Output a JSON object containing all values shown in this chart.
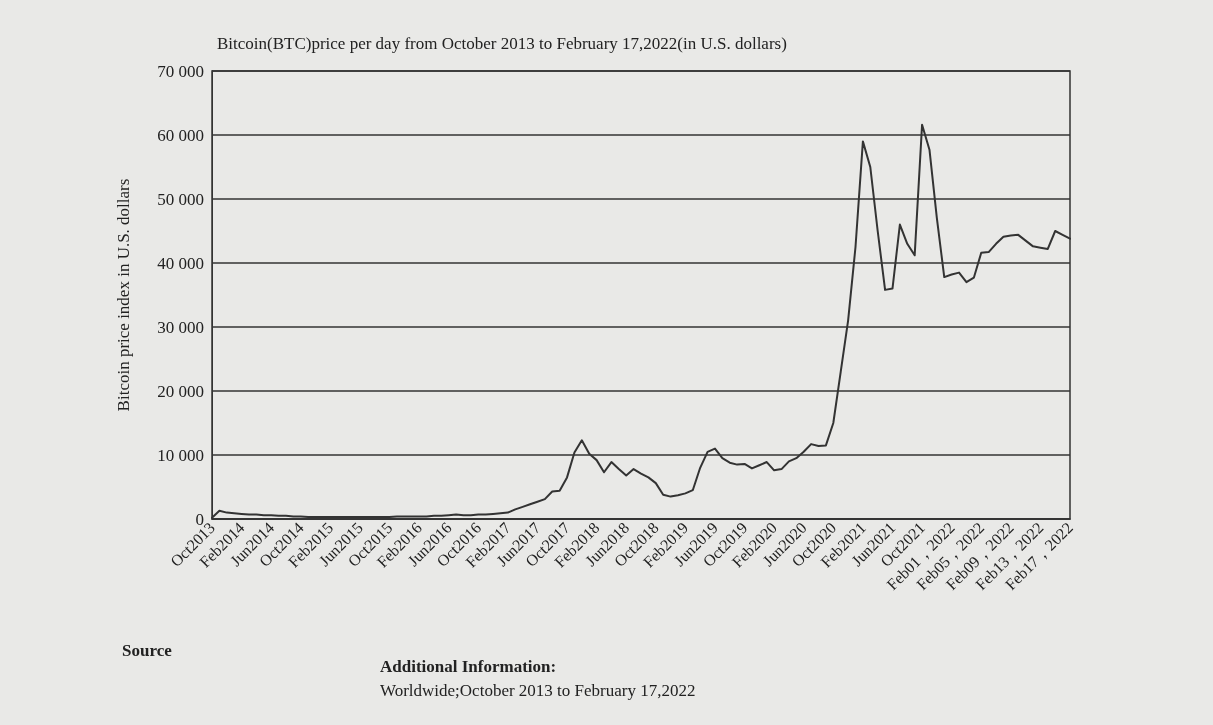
{
  "chart_data": {
    "type": "line",
    "title": "Bitcoin(BTC)price per day from October 2013 to February 17,2022(in U.S. dollars)",
    "ylabel": "Bitcoin price index in U.S. dollars",
    "categories": [
      "Oct2013",
      null,
      null,
      null,
      "Feb2014",
      null,
      null,
      null,
      "Jun2014",
      null,
      null,
      null,
      "Oct2014",
      null,
      null,
      null,
      "Feb2015",
      null,
      null,
      null,
      "Jun2015",
      null,
      null,
      null,
      "Oct2015",
      null,
      null,
      null,
      "Feb2016",
      null,
      null,
      null,
      "Jun2016",
      null,
      null,
      null,
      "Oct2016",
      null,
      null,
      null,
      "Feb2017",
      null,
      null,
      null,
      "Jun2017",
      null,
      null,
      null,
      "Oct2017",
      null,
      null,
      null,
      "Feb2018",
      null,
      null,
      null,
      "Jun2018",
      null,
      null,
      null,
      "Oct2018",
      null,
      null,
      null,
      "Feb2019",
      null,
      null,
      null,
      "Jun2019",
      null,
      null,
      null,
      "Oct2019",
      null,
      null,
      null,
      "Feb2020",
      null,
      null,
      null,
      "Jun2020",
      null,
      null,
      null,
      "Oct2020",
      null,
      null,
      null,
      "Feb2021",
      null,
      null,
      null,
      "Jun2021",
      null,
      null,
      null,
      "Oct2021",
      null,
      null,
      null,
      "Feb01，2022",
      null,
      null,
      null,
      "Feb05，2022",
      null,
      null,
      null,
      "Feb09，2022",
      null,
      null,
      null,
      "Feb13，2022",
      null,
      null,
      null,
      "Feb17，2022"
    ],
    "series": [
      {
        "color": "#333333",
        "values": [
          200,
          1300,
          1000,
          900,
          800,
          700,
          700,
          600,
          600,
          500,
          500,
          400,
          400,
          300,
          300,
          300,
          300,
          300,
          300,
          300,
          300,
          300,
          300,
          300,
          300,
          400,
          400,
          400,
          400,
          400,
          500,
          500,
          600,
          700,
          600,
          600,
          700,
          700,
          800,
          900,
          1000,
          1500,
          1900,
          2300,
          2700,
          3100,
          4300,
          4400,
          6500,
          10400,
          12300,
          10200,
          9200,
          7300,
          8900,
          7800,
          6800,
          7800,
          7100,
          6500,
          5600,
          3800,
          3500,
          3700,
          4000,
          4500,
          8000,
          10500,
          11000,
          9500,
          8800,
          8500,
          8600,
          7900,
          8400,
          8900,
          7600,
          7800,
          9000,
          9500,
          10500,
          11700,
          11400,
          11500,
          15000,
          23000,
          31000,
          42500,
          59000,
          55000,
          45000,
          35800,
          36000,
          46000,
          43000,
          41200,
          61600,
          57700,
          47000,
          37800,
          38200,
          38500,
          37000,
          37700,
          41600,
          41700,
          43000,
          44100,
          44300,
          44400,
          43500,
          42600,
          42400,
          42200,
          45000,
          44400,
          43800
        ]
      }
    ],
    "ylim": [
      0,
      70000
    ],
    "yticks": [
      0,
      {
        "value": 10000,
        "label": "10 000"
      },
      {
        "value": 20000,
        "label": "20 000"
      },
      {
        "value": 30000,
        "label": "30 000"
      },
      {
        "value": 40000,
        "label": "40 000"
      },
      {
        "value": 50000,
        "label": "50 000"
      },
      {
        "value": 60000,
        "label": "60 000"
      },
      {
        "value": 70000,
        "label": "70 000"
      }
    ],
    "grid": "y",
    "marker": "none",
    "line_style": "solid",
    "annotations": [
      "Source",
      "Additional Information:",
      "Worldwide;October 2013 to February 17,2022"
    ]
  }
}
